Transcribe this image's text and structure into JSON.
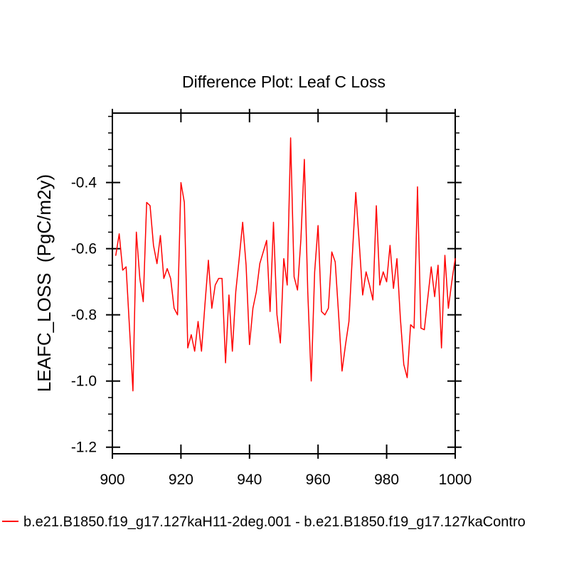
{
  "title": "Difference Plot: Leaf C Loss",
  "y_axis_label": "LEAFC_LOSS  (PgC/m2y)",
  "colors": {
    "line": "#ff0000",
    "axis": "#000000",
    "background": "#ffffff"
  },
  "legend": {
    "marker_color": "#ff0000",
    "label": "b.e21.B1850.f19_g17.127kaH11-2deg.001 - b.e21.B1850.f19_g17.127kaContro"
  },
  "chart_data": {
    "type": "line",
    "title": "Difference Plot: Leaf C Loss",
    "xlabel": "",
    "ylabel": "LEAFC_LOSS  (PgC/m2y)",
    "xlim": [
      900,
      1000
    ],
    "ylim": [
      -1.22,
      -0.19
    ],
    "x_ticks": [
      900,
      920,
      940,
      960,
      980,
      1000
    ],
    "y_ticks": [
      -0.4,
      -0.6,
      -0.8,
      -1.0,
      -1.2
    ],
    "y_minor_step": 0.05,
    "grid": false,
    "legend_position": "bottom-left",
    "series": [
      {
        "name": "b.e21.B1850.f19_g17.127kaH11-2deg.001 - b.e21.B1850.f19_g17.127kaContro",
        "color": "#ff0000",
        "x": [
          901,
          902,
          903,
          904,
          905,
          906,
          907,
          908,
          909,
          910,
          911,
          912,
          913,
          914,
          915,
          916,
          917,
          918,
          919,
          920,
          921,
          922,
          923,
          924,
          925,
          926,
          927,
          928,
          929,
          930,
          931,
          932,
          933,
          934,
          935,
          936,
          937,
          938,
          939,
          940,
          941,
          942,
          943,
          944,
          945,
          946,
          947,
          948,
          949,
          950,
          951,
          952,
          953,
          954,
          955,
          956,
          957,
          958,
          959,
          960,
          961,
          962,
          963,
          964,
          965,
          966,
          967,
          968,
          969,
          970,
          971,
          972,
          973,
          974,
          975,
          976,
          977,
          978,
          979,
          980,
          981,
          982,
          983,
          984,
          985,
          986,
          987,
          988,
          989,
          990,
          991,
          992,
          993,
          994,
          995,
          996,
          997,
          998,
          999,
          1000
        ],
        "values": [
          -0.62,
          -0.555,
          -0.665,
          -0.655,
          -0.84,
          -1.03,
          -0.55,
          -0.69,
          -0.76,
          -0.46,
          -0.47,
          -0.59,
          -0.645,
          -0.56,
          -0.69,
          -0.66,
          -0.69,
          -0.78,
          -0.8,
          -0.4,
          -0.46,
          -0.9,
          -0.86,
          -0.91,
          -0.82,
          -0.91,
          -0.77,
          -0.635,
          -0.78,
          -0.71,
          -0.69,
          -0.69,
          -0.945,
          -0.74,
          -0.91,
          -0.73,
          -0.63,
          -0.52,
          -0.65,
          -0.89,
          -0.78,
          -0.73,
          -0.645,
          -0.61,
          -0.575,
          -0.79,
          -0.52,
          -0.8,
          -0.885,
          -0.63,
          -0.71,
          -0.265,
          -0.685,
          -0.725,
          -0.57,
          -0.33,
          -0.73,
          -1.0,
          -0.67,
          -0.53,
          -0.79,
          -0.8,
          -0.78,
          -0.61,
          -0.64,
          -0.8,
          -0.97,
          -0.89,
          -0.82,
          -0.62,
          -0.43,
          -0.58,
          -0.74,
          -0.67,
          -0.71,
          -0.755,
          -0.47,
          -0.71,
          -0.67,
          -0.7,
          -0.59,
          -0.72,
          -0.63,
          -0.81,
          -0.95,
          -0.99,
          -0.83,
          -0.84,
          -0.413,
          -0.84,
          -0.845,
          -0.75,
          -0.655,
          -0.745,
          -0.65,
          -0.9,
          -0.62,
          -0.78,
          -0.7,
          -0.63
        ]
      }
    ]
  }
}
